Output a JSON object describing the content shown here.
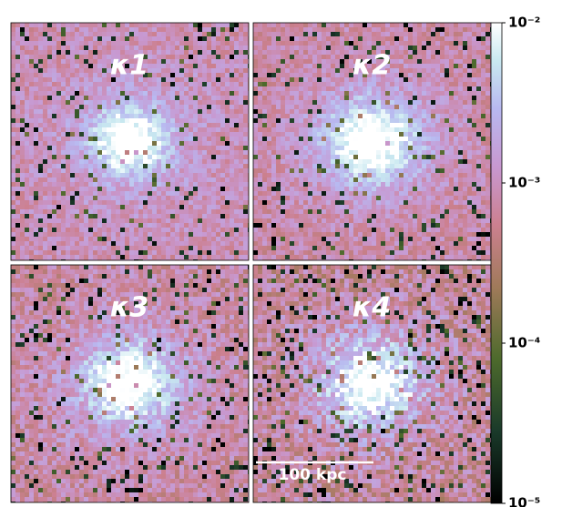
{
  "chart_data": {
    "type": "image",
    "panels": [
      {
        "label": "κ1"
      },
      {
        "label": "κ2"
      },
      {
        "label": "κ3"
      },
      {
        "label": "κ4"
      }
    ],
    "colorbar": {
      "scale": "log",
      "ylim": [
        1e-05,
        0.01
      ],
      "yticks": [
        {
          "value": 0.01,
          "label": "10⁻²"
        },
        {
          "value": 0.001,
          "label": "10⁻³"
        },
        {
          "value": 0.0001,
          "label": "10⁻⁴"
        },
        {
          "value": 1e-05,
          "label": "10⁻⁵"
        }
      ]
    },
    "scale_bar": {
      "label": "100 kpc"
    }
  }
}
